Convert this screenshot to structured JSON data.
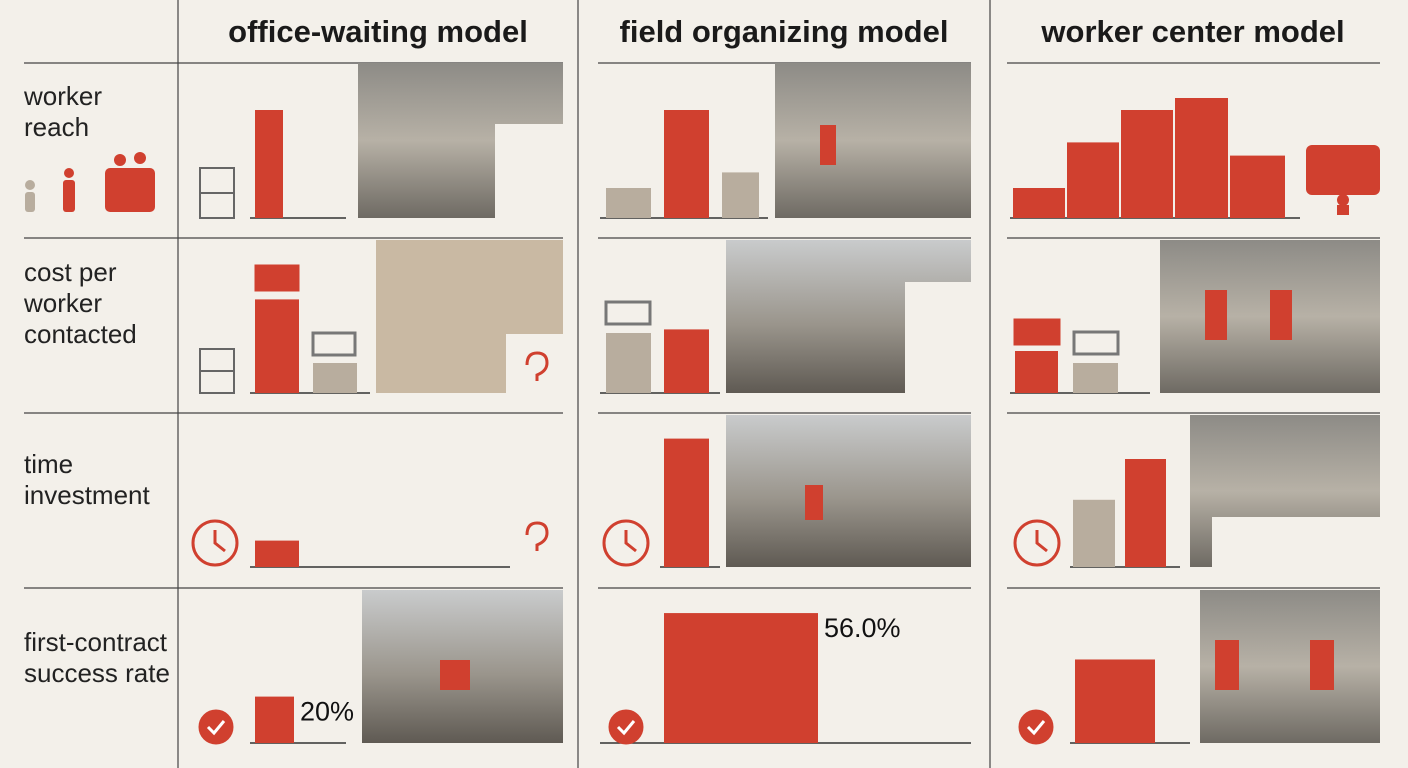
{
  "headers": [
    "office-waiting model",
    "field organizing model",
    "worker center model"
  ],
  "rows": [
    {
      "label": "worker reach",
      "cells": [
        {
          "bars": [
            {
              "color": "#d0402f",
              "value": 90
            }
          ]
        },
        {
          "bars": [
            {
              "color": "#b8ad9e",
              "value": 25
            },
            {
              "color": "#d0402f",
              "value": 90
            },
            {
              "color": "#b8ad9e",
              "value": 38
            }
          ]
        },
        {
          "bars": [
            {
              "color": "#d0402f",
              "value": 25
            },
            {
              "color": "#d0402f",
              "value": 63
            },
            {
              "color": "#d0402f",
              "value": 90
            },
            {
              "color": "#d0402f",
              "value": 100
            },
            {
              "color": "#d0402f",
              "value": 52
            }
          ]
        }
      ]
    },
    {
      "label": "cost per worker contacted",
      "cells": [
        {
          "bars": [
            {
              "color": "#d0402f",
              "value": 78
            },
            {
              "color": "#b8ad9e",
              "value": 25
            }
          ]
        },
        {
          "bars": [
            {
              "color": "#b8ad9e",
              "value": 50
            },
            {
              "color": "#d0402f",
              "value": 53
            }
          ]
        },
        {
          "bars": [
            {
              "color": "#d0402f",
              "value": 35
            },
            {
              "color": "#b8ad9e",
              "value": 25
            }
          ]
        }
      ]
    },
    {
      "label": "time investment",
      "cells": [
        {
          "bars": [
            {
              "color": "#d0402f",
              "value": 22
            }
          ]
        },
        {
          "bars": [
            {
              "color": "#d0402f",
              "value": 107
            }
          ]
        },
        {
          "bars": [
            {
              "color": "#b8ad9e",
              "value": 56
            },
            {
              "color": "#d0402f",
              "value": 90
            }
          ]
        }
      ]
    },
    {
      "label": "first-contract success rate",
      "cells": [
        {
          "bars": [
            {
              "color": "#d0402f",
              "value": 20,
              "value_label": "20%"
            }
          ]
        },
        {
          "bars": [
            {
              "color": "#d0402f",
              "value": 56,
              "value_label": "56.0%"
            }
          ]
        },
        {
          "bars": [
            {
              "color": "#d0402f",
              "value": 36
            }
          ]
        }
      ]
    }
  ]
}
